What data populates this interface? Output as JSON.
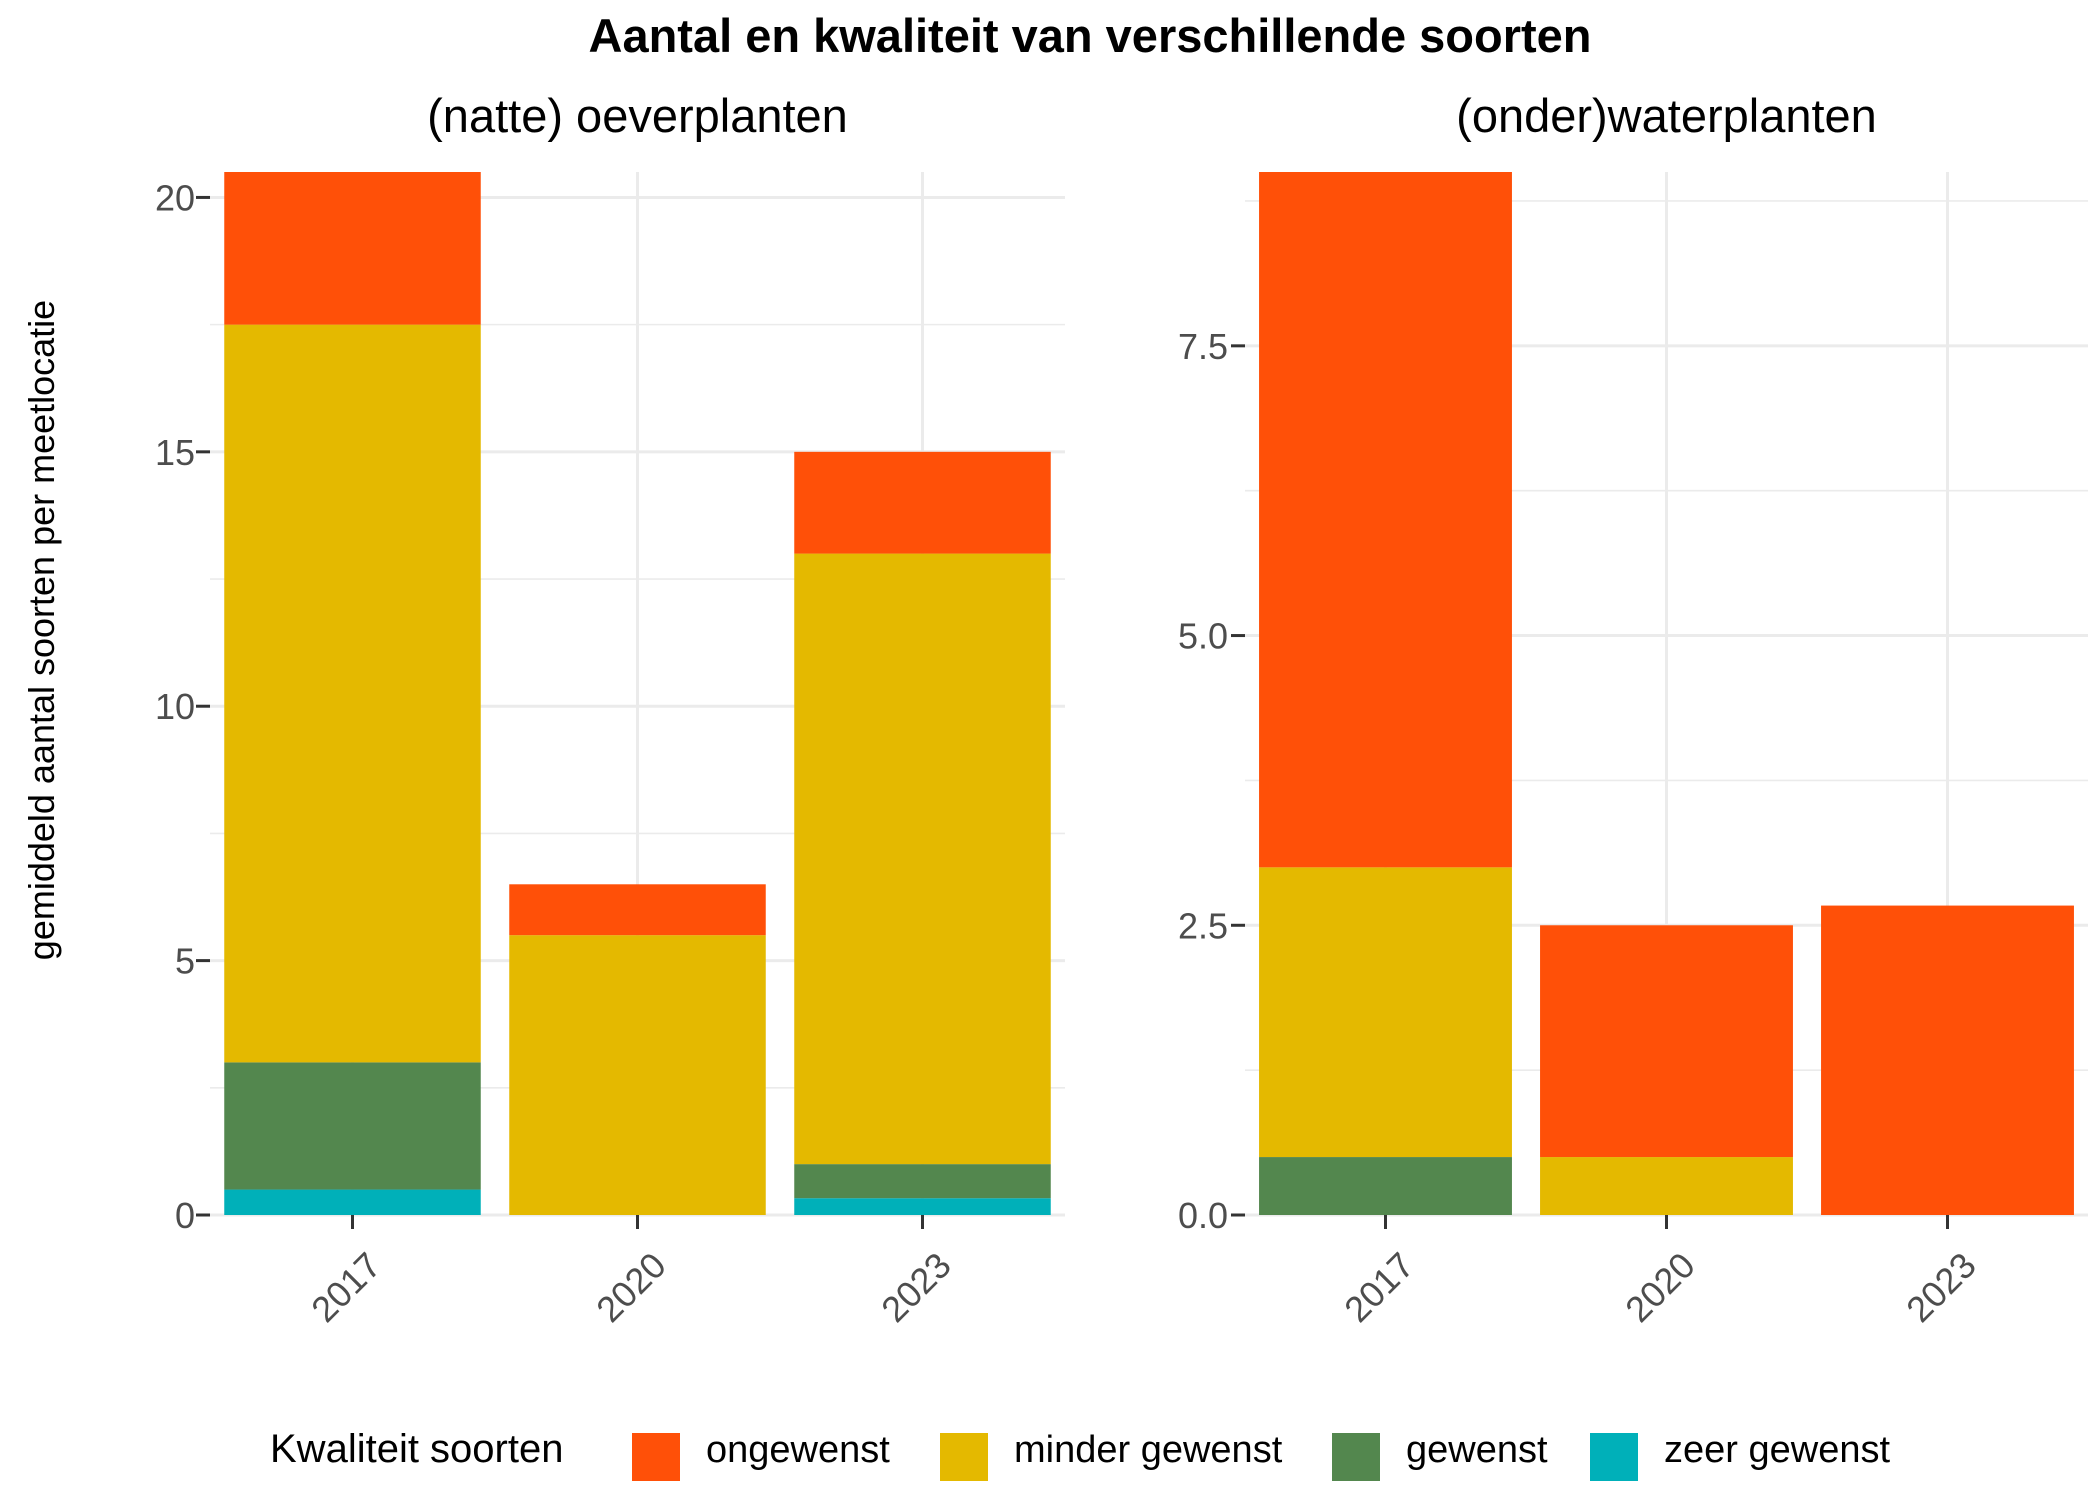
{
  "title": "Aantal en kwaliteit van verschillende soorten",
  "ylabel": "gemiddeld aantal soorten per meetlocatie",
  "legend": {
    "title": "Kwaliteit soorten",
    "position": "bottom"
  },
  "colors": {
    "ongewenst": "#FF5008",
    "minder gewenst": "#E4B900",
    "gewenst": "#53874E",
    "zeer gewenst": "#00B0B9",
    "grid": "#EBEBEB",
    "axis_text": "#4D4D4D"
  },
  "chart_data": [
    {
      "type": "bar",
      "stacked": true,
      "title": "(natte) oeverplanten",
      "categories": [
        "2017",
        "2020",
        "2023"
      ],
      "ylim": [
        0,
        20.5
      ],
      "yticks": [
        0,
        5,
        10,
        15,
        20
      ],
      "ytick_labels": [
        "0",
        "5",
        "10",
        "15",
        "20"
      ],
      "grid": true,
      "series": [
        {
          "name": "zeer gewenst",
          "values": [
            0.5,
            0,
            0.33
          ]
        },
        {
          "name": "gewenst",
          "values": [
            2.5,
            0,
            0.67
          ]
        },
        {
          "name": "minder gewenst",
          "values": [
            14.5,
            5.5,
            12
          ]
        },
        {
          "name": "ongewenst",
          "values": [
            3,
            1,
            2
          ]
        }
      ]
    },
    {
      "type": "bar",
      "stacked": true,
      "title": "(onder)waterplanten",
      "categories": [
        "2017",
        "2020",
        "2023"
      ],
      "ylim": [
        0,
        9
      ],
      "yticks": [
        0,
        2.5,
        5,
        7.5
      ],
      "ytick_labels": [
        "0.0",
        "2.5",
        "5.0",
        "7.5"
      ],
      "grid": true,
      "series": [
        {
          "name": "zeer gewenst",
          "values": [
            0,
            0,
            0
          ]
        },
        {
          "name": "gewenst",
          "values": [
            0.5,
            0,
            0
          ]
        },
        {
          "name": "minder gewenst",
          "values": [
            2.5,
            0.5,
            0
          ]
        },
        {
          "name": "ongewenst",
          "values": [
            6,
            2,
            2.67
          ]
        }
      ]
    }
  ]
}
